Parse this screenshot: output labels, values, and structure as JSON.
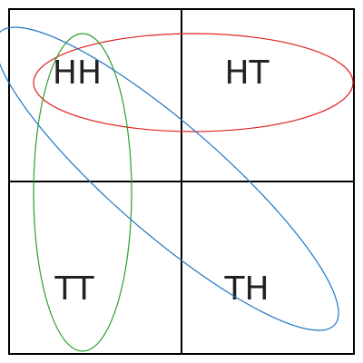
{
  "cells": {
    "top_left": "HH",
    "top_right": "HT",
    "bottom_left": "TT",
    "bottom_right": "TH"
  },
  "colors": {
    "grid": "#000000",
    "red_ellipse": "#e02020",
    "blue_ellipse": "#1f77c4",
    "green_ellipse": "#2ca02c",
    "label": "#222222"
  }
}
